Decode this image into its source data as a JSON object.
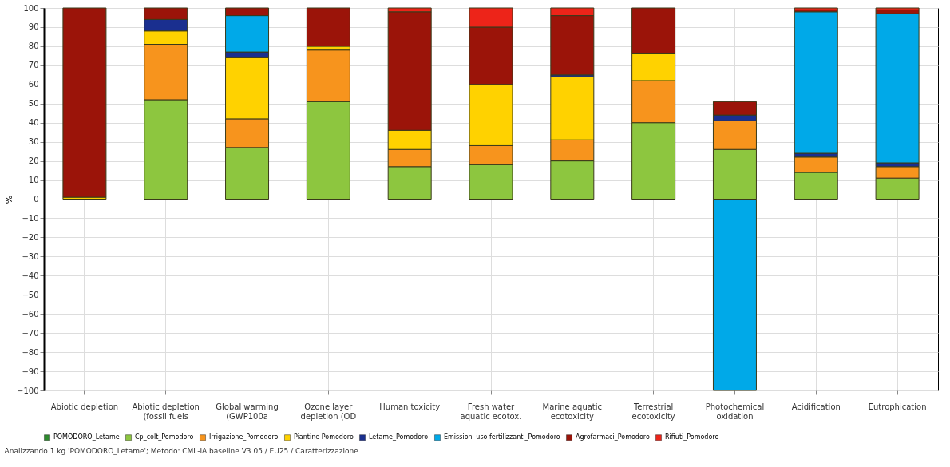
{
  "chart_data": {
    "type": "bar",
    "stacked": true,
    "ylabel": "%",
    "categories": [
      "Abiotic depletion",
      "Abiotic depletion (fossil fuels",
      "Global warming (GWP100a",
      "Ozone layer depletion (OD",
      "Human toxicity",
      "Fresh water aquatic ecotox.",
      "Marine aquatic ecotoxicity",
      "Terrestrial ecotoxicity",
      "Photochemical oxidation",
      "Acidification",
      "Eutrophication"
    ],
    "series": [
      {
        "name": "POMODORO_Letame",
        "color": "#2e8b2e",
        "values": [
          null,
          null,
          null,
          null,
          null,
          null,
          null,
          null,
          null,
          null,
          null
        ]
      },
      {
        "name": "Cp_colt_Pomodoro",
        "color": "#8dc63f",
        "values": [
          0,
          52,
          27,
          51,
          17,
          18,
          20,
          40,
          26,
          14,
          11
        ]
      },
      {
        "name": "Irrigazione_Pomodoro",
        "color": "#f7941d",
        "values": [
          0,
          29,
          15,
          27,
          9,
          10,
          11,
          22,
          15,
          8,
          6
        ]
      },
      {
        "name": "Piantine Pomodoro",
        "color": "#ffd200",
        "values": [
          1,
          7,
          32,
          2,
          10,
          32,
          33,
          14,
          0,
          0,
          0
        ]
      },
      {
        "name": "Letame_Pomodoro",
        "color": "#1a2f8f",
        "values": [
          0,
          6,
          3,
          0,
          0,
          0,
          1,
          0,
          3,
          2,
          2
        ]
      },
      {
        "name": "Emissioni uso fertilizzanti_Pomodoro",
        "color": "#00a9e8",
        "values": [
          0,
          0,
          19,
          0,
          0,
          0,
          0,
          0,
          -100,
          74,
          78
        ]
      },
      {
        "name": "Agrofarmaci_Pomodoro",
        "color": "#9b1409",
        "values": [
          99,
          6,
          4,
          20,
          62,
          30,
          31,
          24,
          7,
          1,
          2
        ]
      },
      {
        "name": "Rifiuti_Pomodoro",
        "color": "#ed2419",
        "values": [
          0,
          0,
          0,
          0,
          2,
          10,
          4,
          0,
          0,
          1,
          1
        ]
      }
    ],
    "ylim": [
      -100,
      100
    ],
    "yticks": [
      -100,
      -90,
      -80,
      -70,
      -60,
      -50,
      -40,
      -30,
      -20,
      -10,
      0,
      10,
      20,
      30,
      40,
      50,
      60,
      70,
      80,
      90,
      100
    ],
    "grid": true,
    "legend": "bottom",
    "annotations": [
      "Analizzando 1 kg 'POMODORO_Letame'; Metodo: CML-IA baseline V3.05 / EU25 / Caratterizzazione"
    ]
  }
}
